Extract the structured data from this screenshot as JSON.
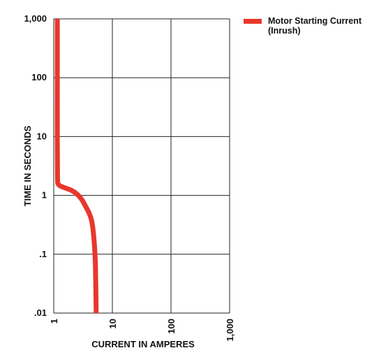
{
  "chart_data": {
    "type": "line",
    "xlabel": "CURRENT IN AMPERES",
    "ylabel": "TIME IN SECONDS",
    "x_scale": "log",
    "y_scale": "log",
    "xlim": [
      1,
      1000
    ],
    "ylim": [
      0.01,
      1000
    ],
    "x_ticks": [
      1,
      10,
      100,
      1000
    ],
    "x_tick_labels": [
      "1",
      "10",
      "100",
      "1,000"
    ],
    "y_ticks": [
      1000,
      100,
      10,
      1,
      0.1,
      0.01
    ],
    "y_tick_labels": [
      "1,000",
      "100",
      "10",
      "1",
      ".1",
      ".01"
    ],
    "grid": true,
    "legend_position": "top-right",
    "series": [
      {
        "name": "Motor Starting Current\n(Inrush)",
        "legend_lines": [
          "Motor Starting Current",
          "(Inrush)"
        ],
        "color": "#e8372d",
        "points": [
          [
            1.15,
            1000
          ],
          [
            1.15,
            100
          ],
          [
            1.15,
            10
          ],
          [
            1.16,
            2.0
          ],
          [
            1.2,
            1.55
          ],
          [
            1.35,
            1.42
          ],
          [
            1.6,
            1.33
          ],
          [
            2.0,
            1.22
          ],
          [
            2.5,
            1.05
          ],
          [
            3.0,
            0.85
          ],
          [
            3.5,
            0.65
          ],
          [
            4.0,
            0.5
          ],
          [
            4.4,
            0.38
          ],
          [
            4.7,
            0.25
          ],
          [
            5.0,
            0.12
          ],
          [
            5.15,
            0.06
          ],
          [
            5.3,
            0.01
          ]
        ]
      }
    ]
  }
}
